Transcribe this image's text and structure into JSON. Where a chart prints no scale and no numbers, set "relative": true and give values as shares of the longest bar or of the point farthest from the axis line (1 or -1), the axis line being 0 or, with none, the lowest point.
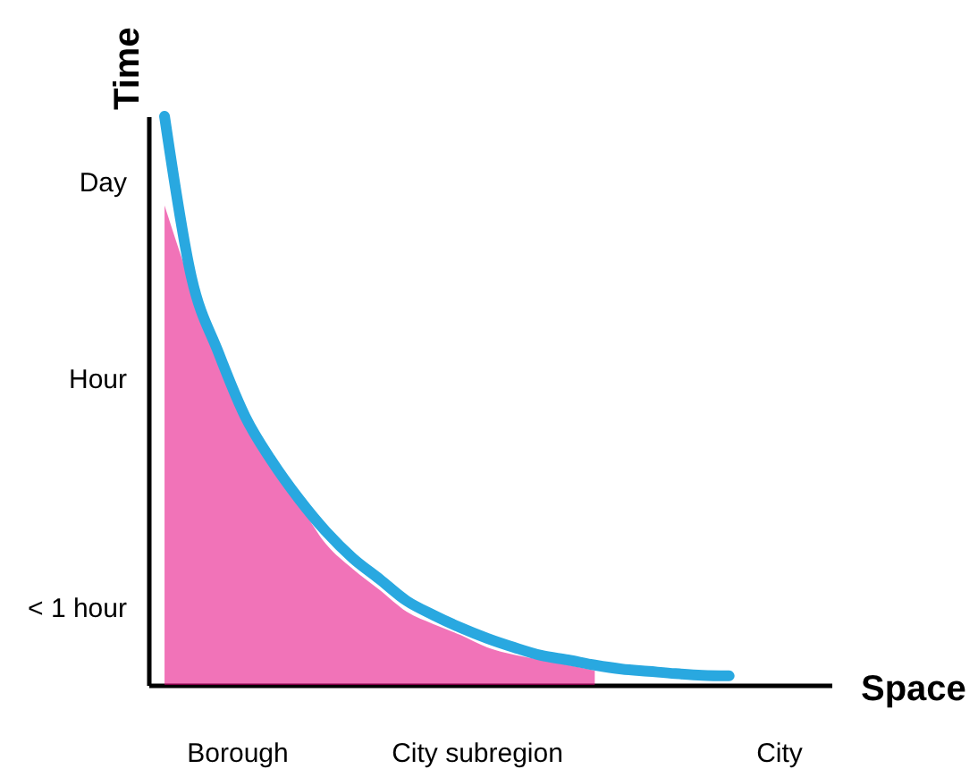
{
  "chart_data": {
    "type": "line",
    "relative": true,
    "xlabel": "Space",
    "ylabel": "Time",
    "categories": [
      null,
      null,
      null,
      null,
      null,
      null,
      null,
      null,
      null,
      null,
      null,
      null,
      null,
      null,
      null,
      null,
      null,
      null,
      null,
      null,
      null,
      null
    ],
    "annotations": [
      "Day",
      "Hour",
      "< 1 hour",
      "Borough",
      "City subregion",
      "City"
    ],
    "series": [
      {
        "type": "area",
        "color": "#e6007e",
        "values": [
          0.843,
          0.701,
          0.575,
          0.459,
          0.381,
          0.318,
          0.248,
          0.204,
          0.167,
          0.129,
          0.107,
          0.088,
          0.066,
          0.053,
          0.044,
          0.035,
          0.025,
          null,
          null,
          null,
          null,
          null
        ]
      },
      {
        "color": "#29a8e0",
        "values": [
          1.0,
          0.717,
          0.585,
          0.472,
          0.393,
          0.327,
          0.27,
          0.223,
          0.186,
          0.148,
          0.123,
          0.101,
          0.082,
          0.066,
          0.052,
          0.044,
          0.035,
          0.028,
          0.024,
          0.02,
          0.017,
          0.016
        ]
      }
    ]
  }
}
